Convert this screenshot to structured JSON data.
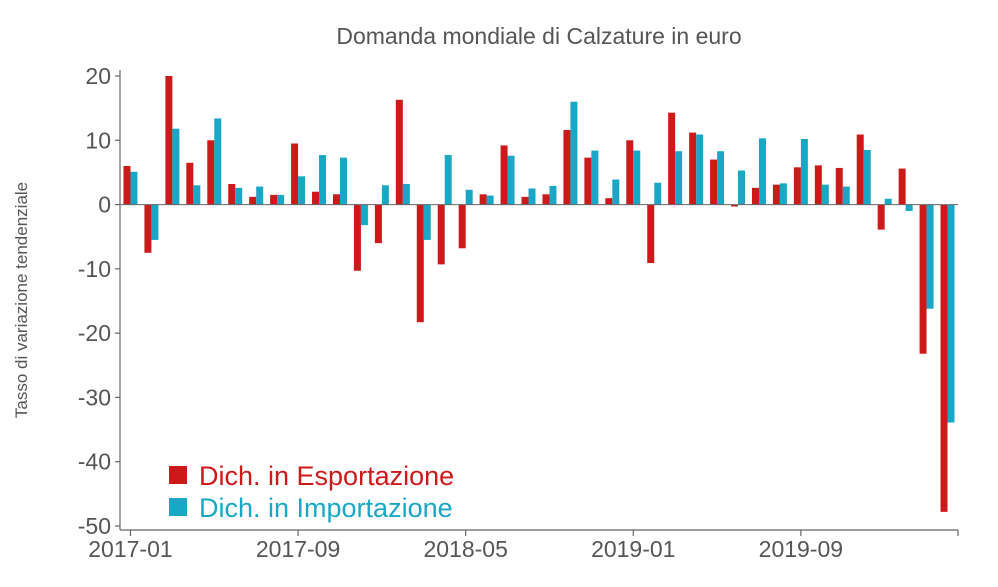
{
  "chart_data": {
    "type": "bar",
    "title": "Domanda mondiale di Calzature in euro",
    "xlabel": "",
    "ylabel": "Tasso di variazione tendenziale",
    "ylim": [
      -50,
      20
    ],
    "yticks": [
      20,
      10,
      0,
      -10,
      -20,
      -30,
      -40,
      -50
    ],
    "xtick_labels": [
      "2017-01",
      "2017-09",
      "2018-05",
      "2019-01",
      "2019-09"
    ],
    "xtick_index": [
      0,
      8,
      16,
      24,
      32
    ],
    "categories": [
      "2017-01",
      "2017-02",
      "2017-03",
      "2017-04",
      "2017-05",
      "2017-06",
      "2017-07",
      "2017-08",
      "2017-09",
      "2017-10",
      "2017-11",
      "2017-12",
      "2018-01",
      "2018-02",
      "2018-03",
      "2018-04",
      "2018-05",
      "2018-06",
      "2018-07",
      "2018-08",
      "2018-09",
      "2018-10",
      "2018-11",
      "2018-12",
      "2019-01",
      "2019-02",
      "2019-03",
      "2019-04",
      "2019-05",
      "2019-06",
      "2019-07",
      "2019-08",
      "2019-09",
      "2019-10",
      "2019-11",
      "2019-12",
      "2020-01",
      "2020-02",
      "2020-03",
      "2020-04"
    ],
    "legend_position": "bottom-left",
    "grid": false,
    "series": [
      {
        "name": "Dich. in Esportazione",
        "color": "#cc1a1a",
        "values": [
          6,
          -7.5,
          20,
          6.5,
          10,
          3.2,
          1.2,
          1.5,
          9.5,
          2,
          1.6,
          -10.3,
          -6,
          16.3,
          -18.3,
          -9.3,
          -6.8,
          1.6,
          9.2,
          1.2,
          1.6,
          11.6,
          7.3,
          1,
          10,
          -9.1,
          14.3,
          11.2,
          7,
          -0.3,
          2.6,
          3.1,
          5.8,
          6.1,
          5.7,
          10.9,
          -3.9,
          5.6,
          -23.2,
          -47.8
        ]
      },
      {
        "name": "Dich. in Importazione",
        "color": "#1aa7c6",
        "values": [
          5.1,
          -5.5,
          11.8,
          3,
          13.4,
          2.6,
          2.8,
          1.5,
          4.4,
          7.7,
          7.3,
          -3.2,
          3,
          3.2,
          -5.5,
          7.7,
          2.3,
          1.4,
          7.6,
          2.5,
          2.9,
          16,
          8.4,
          3.9,
          8.4,
          3.4,
          8.3,
          10.9,
          8.3,
          5.3,
          10.3,
          3.3,
          10.2,
          3.1,
          2.8,
          8.5,
          0.9,
          -1,
          -16.2,
          -33.9
        ]
      }
    ]
  }
}
